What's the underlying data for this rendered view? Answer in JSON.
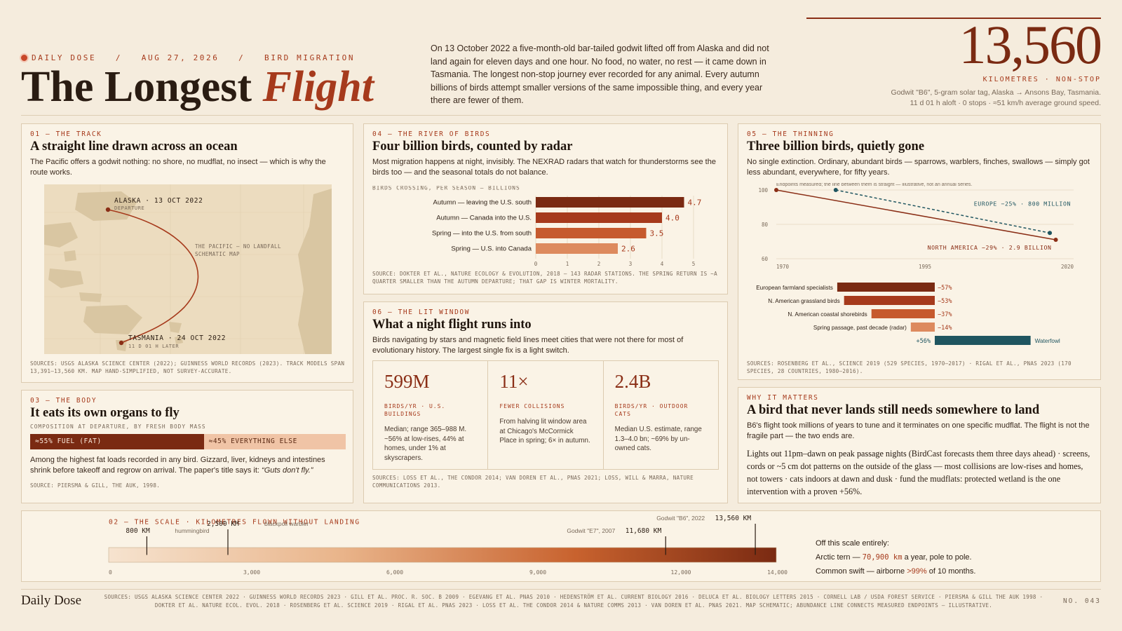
{
  "header": {
    "kicker": "DAILY DOSE   /   AUG 27, 2026   /   BIRD MIGRATION",
    "title_plain": "The Longest ",
    "title_accent": "Flight",
    "intro": "On 13 October 2022 a five-month-old bar-tailed godwit lifted off from Alaska and did not land again for eleven days and one hour. No food, no water, no rest — it came down in Tasmania. The longest non-stop journey ever recorded for any animal. Every autumn billions of birds attempt smaller versions of the same impossible thing, and every year there are fewer of them.",
    "big_stat": "13,560",
    "big_stat_unit": "KILOMETRES · NON-STOP",
    "big_stat_note1": "Godwit \"B6\", 5-gram solar tag, Alaska → Ansons Bay, Tasmania.",
    "big_stat_note2": "11 d 01 h aloft · 0 stops · ≈51 km/h average ground speed."
  },
  "track": {
    "kicker": "01 — THE TRACK",
    "title": "A straight line drawn across an ocean",
    "body": "The Pacific offers a godwit nothing: no shore, no mudflat, no insect — which is why the route works.",
    "alaska_label": "ALASKA · 13 OCT 2022",
    "alaska_sub": "DEPARTURE",
    "tasmania_label": "TASMANIA · 24 OCT 2022",
    "tasmania_sub": "11 D 01 H LATER",
    "ocean_label1": "THE PACIFIC — NO LANDFALL",
    "ocean_label2": "SCHEMATIC MAP",
    "source": "SOURCES: USGS ALASKA SCIENCE CENTER (2022); GUINNESS WORLD RECORDS (2023). TRACK MODELS SPAN 13,391–13,560 KM. MAP HAND-SIMPLIFIED, NOT SURVEY-ACCURATE."
  },
  "body_panel": {
    "kicker": "03 — THE BODY",
    "title": "It eats its own organs to fly",
    "mini_kicker": "COMPOSITION AT DEPARTURE, BY FRESH BODY MASS",
    "fuel_label": "≈55% FUEL (FAT)",
    "fuel_fraction": 0.55,
    "rest_label": "≈45% EVERYTHING ELSE",
    "body_text": "Among the highest fat loads recorded in any bird. Gizzard, liver, kidneys and intestines shrink before takeoff and regrow on arrival. The paper's title says it: ",
    "quote": "“Guts don't fly.”",
    "source": "SOURCE: PIERSMA & GILL, THE AUK, 1998."
  },
  "radar": {
    "kicker": "04 — THE RIVER OF BIRDS",
    "title": "Four billion birds, counted by radar",
    "body": "Most migration happens at night, invisibly. The NEXRAD radars that watch for thunderstorms see the birds too — and the seasonal totals do not balance.",
    "source": "SOURCE: DOKTER ET AL., NATURE ECOLOGY & EVOLUTION, 2018 — 143 RADAR STATIONS. THE SPRING RETURN IS ~A QUARTER SMALLER THAN THE AUTUMN DEPARTURE; THAT GAP IS WINTER MORTALITY.",
    "chart_data": {
      "type": "bar",
      "orientation": "horizontal",
      "title": "BIRDS CROSSING, PER SEASON — BILLIONS",
      "categories": [
        "Autumn — leaving the U.S. south",
        "Autumn — Canada into the U.S.",
        "Spring — into the U.S. from south",
        "Spring — U.S. into Canada"
      ],
      "values": [
        4.7,
        4.0,
        3.5,
        2.6
      ],
      "value_labels": [
        "4.7",
        "4.0",
        "3.5",
        "2.6"
      ],
      "colors": [
        "#7a2a12",
        "#a63a1c",
        "#c65a2e",
        "#dd8a5e"
      ],
      "xlim": [
        0,
        5
      ],
      "ticks": [
        "0",
        "1",
        "2",
        "3",
        "4",
        "5"
      ],
      "grid": true
    }
  },
  "lit": {
    "kicker": "06 — THE LIT WINDOW",
    "title": "What a night flight runs into",
    "body": "Birds navigating by stars and magnetic field lines meet cities that were not there for most of evolutionary history. The largest single fix is a light switch.",
    "stats": [
      {
        "value": "599M",
        "label": "BIRDS/YR · U.S. BUILDINGS",
        "note": "Median; range 365–988 M. ~56% at low-rises, 44% at homes, under 1% at skyscrapers."
      },
      {
        "value": "11×",
        "label": "FEWER COLLISIONS",
        "note": "From halving lit window area at Chicago's McCormick Place in spring; 6× in autumn."
      },
      {
        "value": "2.4B",
        "label": "BIRDS/YR · OUTDOOR CATS",
        "note": "Median U.S. estimate, range 1.3–4.0 bn; ~69% by un-owned cats."
      }
    ],
    "source": "SOURCES: LOSS ET AL., THE CONDOR 2014; VAN DOREN ET AL., PNAS 2021; LOSS, WILL & MARRA, NATURE COMMUNICATIONS 2013."
  },
  "thinning": {
    "kicker": "05 — THE THINNING",
    "title": "Three billion birds, quietly gone",
    "body": "No single extinction. Ordinary, abundant birds — sparrows, warblers, finches, swallows — simply got less abundant, everywhere, for fifty years.",
    "source": "SOURCES: ROSENBERG ET AL., SCIENCE 2019 (529 SPECIES, 1970–2017) · RIGAL ET AL., PNAS 2023 (170 SPECIES, 28 COUNTRIES, 1980–2016).",
    "chart_data": [
      {
        "type": "line",
        "annotation": "Endpoints measured; the line between them is straight — illustrative, not an annual series.",
        "xlim": [
          1970,
          2020
        ],
        "ylim": [
          60,
          100
        ],
        "x_ticks": [
          "1970",
          "1995",
          "2020"
        ],
        "y_ticks": [
          "100",
          "80",
          "60"
        ],
        "grid": true,
        "series": [
          {
            "name": "NORTH AMERICA −29% · 2.9 BILLION",
            "x": [
              1970,
              2017
            ],
            "y": [
              100,
              71
            ],
            "color": "#8a2e16",
            "dash": false
          },
          {
            "name": "EUROPE −25% · 800 MILLION",
            "x": [
              1980,
              2016
            ],
            "y": [
              100,
              75
            ],
            "color": "#1f5560",
            "dash": true
          }
        ]
      },
      {
        "type": "bar",
        "orientation": "horizontal",
        "categories": [
          "European farmland specialists",
          "N. American grassland birds",
          "N. American coastal shorebirds",
          "Spring passage, past decade (radar)",
          "Waterfowl"
        ],
        "values": [
          -57,
          -53,
          -37,
          -14,
          56
        ],
        "value_labels": [
          "−57%",
          "−53%",
          "−37%",
          "−14%",
          "+56%"
        ],
        "colors": [
          "#7a2a12",
          "#a63a1c",
          "#c65a2e",
          "#dd8a5e",
          "#1f5560"
        ]
      }
    ]
  },
  "why": {
    "kicker": "WHY IT MATTERS",
    "title": "A bird that never lands still needs somewhere to land",
    "body": "B6's flight took millions of years to tune and it terminates on one specific mudflat. The flight is not the fragile part — the two ends are.",
    "lede_bold": "Lights out 11pm–dawn on peak passage nights",
    "lede_rest": " (BirdCast forecasts them three days ahead) · screens, cords or ~5 cm dot patterns on the outside of the glass — most collisions are low-rises and homes, not towers · cats indoors at dawn and dusk · fund the mudflats: protected wetland is the one intervention with a proven +56%."
  },
  "scale": {
    "kicker": "02 — THE SCALE · KILOMETRES FLOWN WITHOUT LANDING",
    "chart_data": {
      "type": "bar",
      "orientation": "horizontal-gradient-scale",
      "xlim": [
        0,
        14000
      ],
      "ticks": [
        0,
        3000,
        6000,
        9000,
        12000,
        14000
      ],
      "tick_labels": [
        "0",
        "3,000",
        "6,000",
        "9,000",
        "12,000",
        "14,000"
      ],
      "markers": [
        {
          "value": 800,
          "value_label": "800 KM",
          "name": "hummingbird"
        },
        {
          "value": 2500,
          "value_label": "2,500 KM",
          "name": "blackpoll warbler"
        },
        {
          "value": 11680,
          "value_label": "11,680 KM",
          "name": "Godwit \"E7\", 2007"
        },
        {
          "value": 13560,
          "value_label": "13,560 KM",
          "name": "Godwit \"B6\", 2022"
        }
      ]
    },
    "side_head": "Off this scale entirely:",
    "side_line1_a": "Arctic tern — ",
    "side_line1_b": "70,900 km",
    "side_line1_c": " a year, pole to pole.",
    "side_line2_a": "Common swift — airborne ",
    "side_line2_b": ">99%",
    "side_line2_c": " of 10 months."
  },
  "footer": {
    "brand": "Daily Dose",
    "sources_line1": "SOURCES: USGS ALASKA SCIENCE CENTER 2022 · GUINNESS WORLD RECORDS 2023 · GILL ET AL. PROC. R. SOC. B 2009 · EGEVANG ET AL. PNAS 2010 · HEDENSTRÖM ET AL. CURRENT BIOLOGY 2016 · DELUCA ET AL. BIOLOGY LETTERS 2015 · CORNELL LAB / USDA FOREST SERVICE · PIERSMA & GILL THE AUK 1998 ·",
    "sources_line2": "DOKTER ET AL. NATURE ECOL. EVOL. 2018 · ROSENBERG ET AL. SCIENCE 2019 · RIGAL ET AL. PNAS 2023 · LOSS ET AL. THE CONDOR 2014 & NATURE COMMS 2013 · VAN DOREN ET AL. PNAS 2021. MAP SCHEMATIC; ABUNDANCE LINE CONNECTS MEASURED ENDPOINTS — ILLUSTRATIVE.",
    "issue": "NO. 043"
  },
  "colors": {
    "accent": "#a63a1c",
    "deep": "#7a2a12",
    "teal": "#1f5560",
    "paper": "#f5ecdd"
  }
}
